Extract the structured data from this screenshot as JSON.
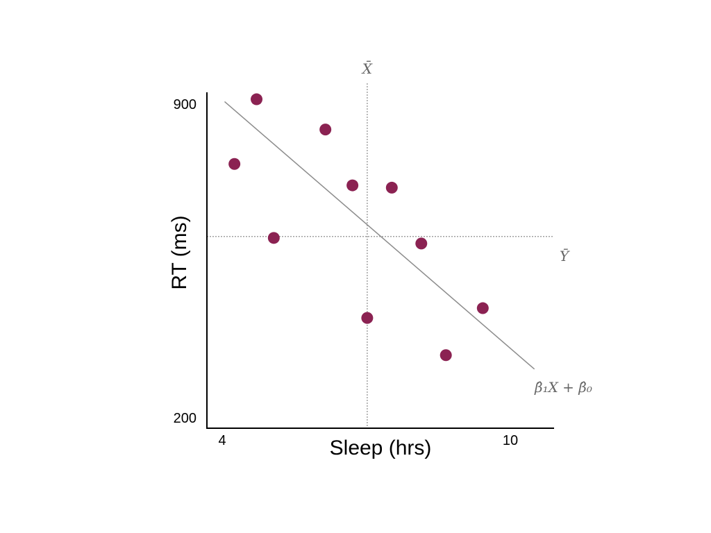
{
  "chart_data": {
    "type": "scatter",
    "xlabel": "Sleep (hrs)",
    "ylabel": "RT (ms)",
    "x_tick_labels": [
      {
        "value": 4,
        "label": "4"
      },
      {
        "value": 10,
        "label": "10"
      }
    ],
    "y_tick_labels": [
      {
        "value": 900,
        "label": "900"
      },
      {
        "value": 200,
        "label": "200"
      }
    ],
    "xlim": [
      3.94,
      11.0
    ],
    "ylim": [
      178,
      900
    ],
    "points": [
      {
        "x": 4.5,
        "y": 746
      },
      {
        "x": 4.95,
        "y": 885
      },
      {
        "x": 5.3,
        "y": 587
      },
      {
        "x": 6.35,
        "y": 820
      },
      {
        "x": 6.9,
        "y": 700
      },
      {
        "x": 7.2,
        "y": 415
      },
      {
        "x": 7.7,
        "y": 695
      },
      {
        "x": 8.3,
        "y": 575
      },
      {
        "x": 8.8,
        "y": 335
      },
      {
        "x": 9.55,
        "y": 436
      }
    ],
    "regression_line": {
      "x1": 4.3,
      "y1": 880,
      "x2": 10.6,
      "y2": 305,
      "label": "β̂₁X + β̂₀"
    },
    "x_mean": {
      "value": 7.2,
      "label": "X̄"
    },
    "y_mean": {
      "value": 590,
      "label": "Ȳ"
    },
    "grid": false,
    "colors": {
      "points": "#8b2252",
      "regression_line": "#8c8c8c",
      "mean_lines": "#a0a0a0",
      "axes": "#000000"
    }
  }
}
